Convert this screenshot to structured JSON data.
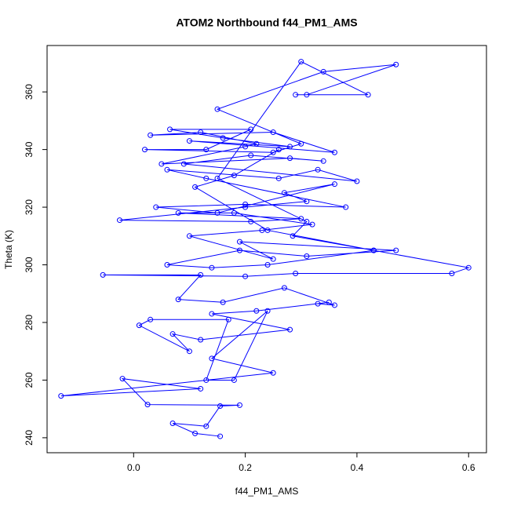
{
  "chart_data": {
    "type": "line",
    "markers": true,
    "title": "ATOM2 Northbound f44_PM1_AMS",
    "x_label": "f44_PM1_AMS",
    "y_label": "Theta (K)",
    "color": "#0000ff",
    "xlim": [
      -0.155,
      0.632
    ],
    "ylim": [
      234.8,
      376.1
    ],
    "xticks": [
      {
        "value": 0,
        "label": "0.0"
      },
      0.2,
      0.4,
      0.6
    ],
    "yticks": [
      240,
      260,
      280,
      300,
      320,
      340,
      360
    ],
    "x": [
      0.155,
      0.11,
      0.07,
      0.13,
      0.155,
      0.19,
      0.025,
      -0.02,
      0.12,
      -0.13,
      0.25,
      0.14,
      0.24,
      0.18,
      0.13,
      0.17,
      0.03,
      0.01,
      0.1,
      0.07,
      0.12,
      0.28,
      0.14,
      0.22,
      0.35,
      0.33,
      0.36,
      0.27,
      0.16,
      0.08,
      0.12,
      -0.055,
      0.2,
      0.29,
      0.57,
      0.6,
      0.43,
      0.24,
      0.14,
      0.06,
      0.19,
      0.31,
      0.47,
      0.19,
      0.25,
      0.1,
      0.23,
      0.32,
      0.18,
      0.08,
      0.3,
      0.21,
      -0.025,
      0.2,
      0.31,
      0.27,
      0.36,
      0.15,
      0.04,
      0.2,
      0.38,
      0.13,
      0.06,
      0.26,
      0.33,
      0.4,
      0.09,
      0.21,
      0.34,
      0.28,
      0.05,
      0.2,
      0.22,
      0.12,
      0.03,
      0.25,
      0.36,
      0.1,
      0.28,
      0.16,
      0.065,
      0.21,
      0.13,
      0.02,
      0.25,
      0.3,
      0.15,
      0.34,
      0.47,
      0.31,
      0.29,
      0.42,
      0.3,
      0.15,
      0.31,
      0.285,
      0.43,
      0.24,
      0.11,
      0.18,
      0.26
    ],
    "y": [
      240.5,
      241.5,
      245,
      244,
      251,
      251.3,
      251.5,
      260.5,
      257,
      254.5,
      262.5,
      267.5,
      284,
      260,
      260,
      281,
      281,
      279,
      270,
      276,
      274,
      277.5,
      283,
      284,
      287,
      286.5,
      286,
      292,
      287,
      288,
      296.5,
      296.5,
      296,
      297,
      297,
      299,
      305,
      300,
      299,
      300,
      305,
      303,
      305,
      308,
      302,
      310,
      312,
      314,
      318,
      318,
      316,
      315,
      315.5,
      320,
      322,
      325,
      328,
      318,
      320,
      321,
      320,
      330,
      333,
      330,
      333,
      329,
      335,
      338,
      336,
      337,
      335,
      341,
      342,
      346,
      345,
      346,
      339,
      343,
      341,
      344,
      347,
      347,
      340,
      340,
      339,
      342,
      354,
      367,
      369.5,
      359,
      359,
      359,
      370.5,
      330,
      315,
      310,
      305,
      312,
      327,
      331,
      340
    ]
  }
}
